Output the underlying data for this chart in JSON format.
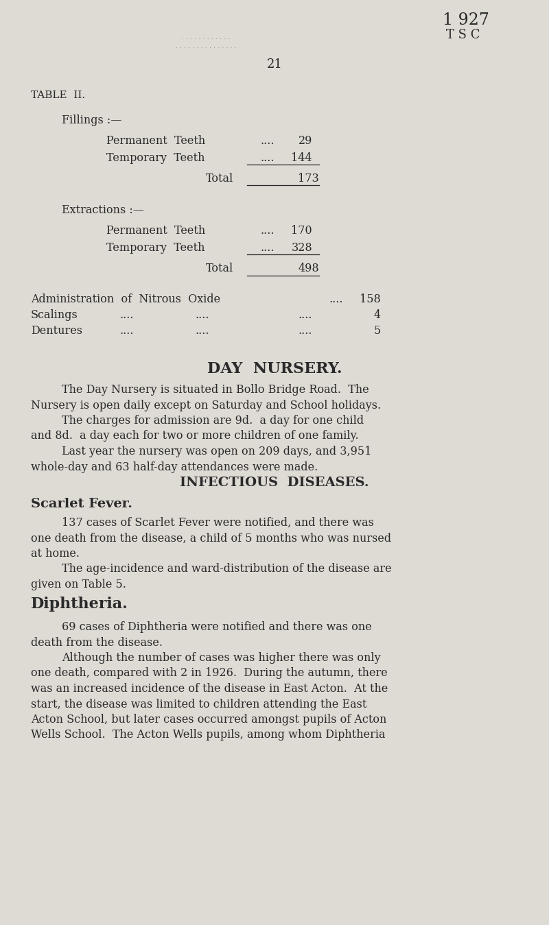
{
  "bg_color": "#dedad4",
  "text_color": "#2a2a2a",
  "page_number": "21",
  "top_right_line1": "1 927",
  "top_right_line2": "T S C",
  "table_header": "TABLE  II.",
  "fillings_header": "Fillings :—",
  "fillings_permanent_label": "Permanent  Teeth",
  "fillings_permanent_dots": "....",
  "fillings_permanent_value": "29",
  "fillings_temporary_label": "Temporary  Teeth",
  "fillings_temporary_dots": "....",
  "fillings_temporary_value": "144",
  "fillings_total_label": "Total",
  "fillings_total_value": "173",
  "extractions_header": "Extractions :—",
  "extractions_permanent_label": "Permanent  Teeth",
  "extractions_permanent_dots": "....",
  "extractions_permanent_value": "170",
  "extractions_temporary_label": "Temporary  Teeth",
  "extractions_temporary_dots": "....",
  "extractions_temporary_value": "328",
  "extractions_total_label": "Total",
  "extractions_total_value": "498",
  "admin_label": "Administration  of  Nitrous  Oxide",
  "admin_dots": "....",
  "admin_value": "158",
  "scalings_label": "Scalings",
  "scalings_dots1": "....",
  "scalings_dots2": "....",
  "scalings_dots3": "....",
  "scalings_value": "4",
  "dentures_label": "Dentures",
  "dentures_dots1": "....",
  "dentures_dots2": "....",
  "dentures_dots3": "....",
  "dentures_value": "5",
  "day_nursery_title": "DAY  NURSERY.",
  "infectious_title": "INFECTIOUS  DISEASES.",
  "scarlet_header": "Scarlet Fever.",
  "diphtheria_header": "Diphtheria."
}
